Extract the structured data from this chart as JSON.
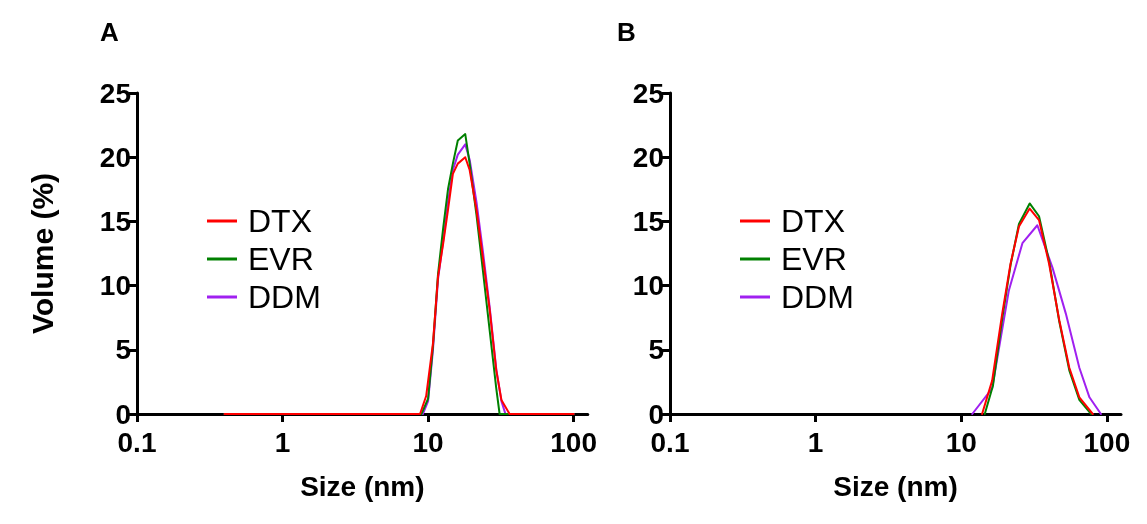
{
  "chart_data": [
    {
      "type": "line",
      "title": "A",
      "xlabel": "Size (nm)",
      "ylabel": "Volume (%)",
      "log": "x",
      "grid": false,
      "legend": "left",
      "line_style": "solid",
      "marker": "none",
      "xlim": [
        0.1,
        125
      ],
      "xticks": [
        0.1,
        1,
        10,
        100
      ],
      "ylim": [
        0,
        25
      ],
      "yticks": [
        0,
        5,
        10,
        15,
        20,
        25
      ],
      "series": [
        {
          "name": "DTX",
          "color": "#ff0000",
          "x": [
            0.4,
            8.8,
            9.7,
            10.8,
            11.7,
            12.7,
            13.7,
            14.8,
            16,
            18,
            19.3,
            21.5,
            23.9,
            26.5,
            29.4,
            31.9,
            36.3,
            100
          ],
          "values": [
            0,
            0,
            1.4,
            5.5,
            10.7,
            13.3,
            15.9,
            18.7,
            19.5,
            20,
            19,
            15.9,
            12,
            8.1,
            3.4,
            1.1,
            0,
            0
          ]
        },
        {
          "name": "EVR",
          "color": "#008000",
          "x": [
            0.4,
            9,
            10,
            10.8,
            11.7,
            12.7,
            13.7,
            14.8,
            16,
            18,
            19.3,
            21.5,
            23.9,
            26.5,
            29.4,
            31,
            100
          ],
          "values": [
            0,
            0,
            1.2,
            5.3,
            10.9,
            14.5,
            17.5,
            19.5,
            21.3,
            21.8,
            19.5,
            15.5,
            11,
            6.5,
            2,
            0,
            0
          ]
        },
        {
          "name": "DDM",
          "color": "#a020f0",
          "x": [
            0.4,
            9.2,
            10,
            10.8,
            11.7,
            12.7,
            13.7,
            14.8,
            16,
            18,
            19.3,
            21.5,
            23.9,
            26.5,
            29.4,
            31.9,
            34,
            100
          ],
          "values": [
            0,
            0,
            1,
            5,
            10.5,
            13.5,
            16.5,
            19,
            20.2,
            21,
            19.8,
            16.5,
            12.5,
            8.3,
            3.5,
            1,
            0,
            0
          ]
        }
      ]
    },
    {
      "type": "line",
      "title": "B",
      "xlabel": "Size (nm)",
      "log": "x",
      "grid": false,
      "legend": "left",
      "line_style": "solid",
      "marker": "none",
      "xlim": [
        0.1,
        125
      ],
      "xticks": [
        0.1,
        1,
        10,
        100
      ],
      "ylim": [
        0,
        25
      ],
      "yticks": [
        0,
        5,
        10,
        15,
        20,
        25
      ],
      "series": [
        {
          "name": "DTX",
          "color": "#ff0000",
          "x": [
            13.9,
            16.3,
            19.1,
            21.8,
            24.9,
            29.5,
            34.2,
            40.1,
            47.1,
            55.2,
            64.7,
            80
          ],
          "values": [
            0,
            2.6,
            7.8,
            11.7,
            14.6,
            16,
            15.1,
            11.7,
            7.3,
            3.6,
            1.3,
            0
          ]
        },
        {
          "name": "EVR",
          "color": "#008000",
          "x": [
            14.5,
            16.5,
            19.1,
            21.8,
            24.9,
            29.5,
            34.2,
            40.1,
            47.1,
            55.2,
            64.7,
            78
          ],
          "values": [
            0,
            2.2,
            7.4,
            11.6,
            14.8,
            16.4,
            15.4,
            11.9,
            7.2,
            3.4,
            1.1,
            0
          ]
        },
        {
          "name": "DDM",
          "color": "#a020f0",
          "x": [
            11.9,
            16.3,
            21.2,
            26.3,
            33.3,
            42.3,
            52.3,
            64.7,
            75.9,
            91
          ],
          "values": [
            0,
            2,
            9.6,
            13.3,
            14.7,
            11.4,
            7.8,
            3.6,
            1.3,
            0
          ]
        }
      ]
    }
  ]
}
